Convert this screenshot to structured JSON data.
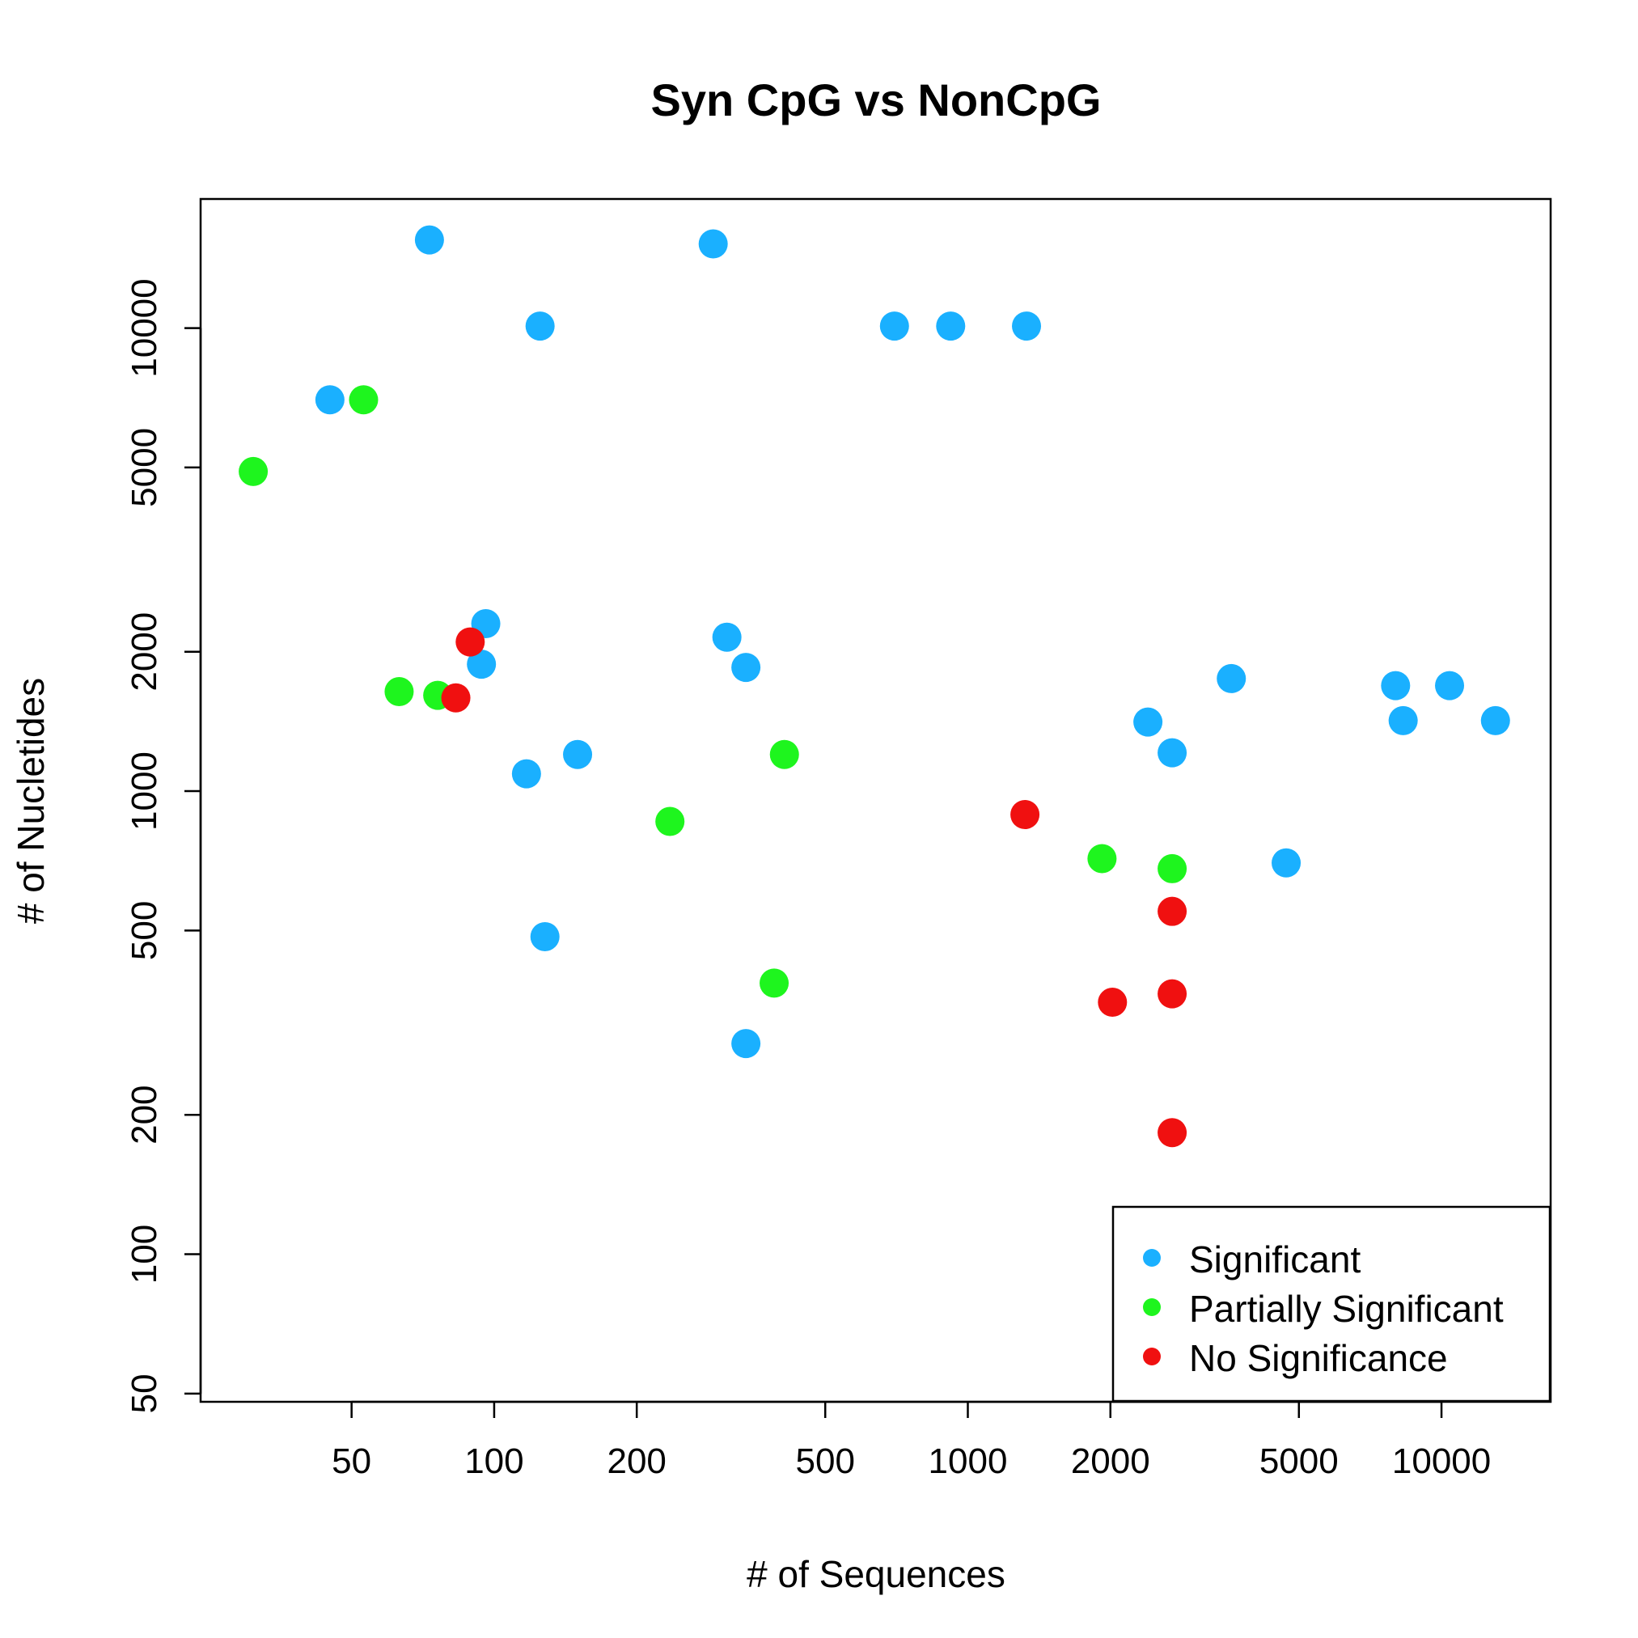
{
  "chart_data": {
    "type": "scatter",
    "title": "Syn CpG vs NonCpG",
    "xlabel": "# of Sequences",
    "ylabel": "# of Nucletides",
    "xscale": "log",
    "yscale": "log",
    "xlim": [
      24,
      17000
    ],
    "ylim": [
      48,
      19000
    ],
    "xticks": [
      50,
      100,
      200,
      500,
      1000,
      2000,
      5000,
      10000
    ],
    "xtick_labels": [
      "50",
      "100",
      "200",
      "500",
      "1000",
      "2000",
      "5000",
      "10000"
    ],
    "yticks": [
      50,
      100,
      200,
      500,
      1000,
      2000,
      5000,
      10000
    ],
    "ytick_labels": [
      "50",
      "100",
      "200",
      "500",
      "1000",
      "2000",
      "5000",
      "10000"
    ],
    "grid": false,
    "legend": {
      "position": "bottom-right"
    },
    "series": [
      {
        "name": "Significant",
        "color": "#1AB0FF",
        "points": [
          [
            73,
            15500
          ],
          [
            290,
            15200
          ],
          [
            125,
            10100
          ],
          [
            700,
            10100
          ],
          [
            920,
            10100
          ],
          [
            1330,
            10100
          ],
          [
            45,
            7000
          ],
          [
            96,
            2300
          ],
          [
            94,
            1880
          ],
          [
            310,
            2150
          ],
          [
            340,
            1850
          ],
          [
            3600,
            1750
          ],
          [
            8000,
            1690
          ],
          [
            10400,
            1690
          ],
          [
            8300,
            1420
          ],
          [
            13000,
            1420
          ],
          [
            2400,
            1410
          ],
          [
            2700,
            1210
          ],
          [
            150,
            1200
          ],
          [
            117,
            1090
          ],
          [
            4700,
            700
          ],
          [
            128,
            485
          ],
          [
            340,
            285
          ]
        ]
      },
      {
        "name": "Partially Significant",
        "color": "#1EF51E",
        "points": [
          [
            53,
            7000
          ],
          [
            31,
            4900
          ],
          [
            63,
            1640
          ],
          [
            76,
            1610
          ],
          [
            410,
            1200
          ],
          [
            235,
            860
          ],
          [
            1920,
            715
          ],
          [
            2700,
            680
          ],
          [
            390,
            385
          ]
        ]
      },
      {
        "name": "No Significance",
        "color": "#F01010",
        "points": [
          [
            89,
            2100
          ],
          [
            83,
            1590
          ],
          [
            1320,
            890
          ],
          [
            2700,
            550
          ],
          [
            2020,
            350
          ],
          [
            2700,
            365
          ],
          [
            2700,
            183
          ]
        ]
      }
    ]
  }
}
